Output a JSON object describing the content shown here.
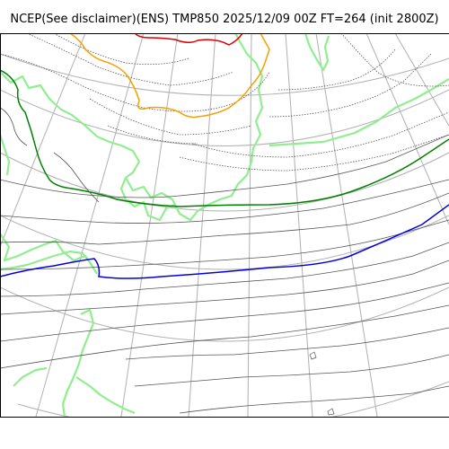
{
  "title": "NCEP(See disclaimer)(ENS) TMP850 2025/12/09 00Z FT=264 (init 2800Z)",
  "legend": {},
  "colors": {
    "coastline": "#90ee90",
    "graticule": "#b0b0b0",
    "isotherm": "#555555",
    "isotherm_dotted": "#555555",
    "zero_line": "#008000",
    "minus_6_line": "#0000dd",
    "minus_12_line": "#f5a000",
    "minus_18_line": "#dd0000"
  }
}
